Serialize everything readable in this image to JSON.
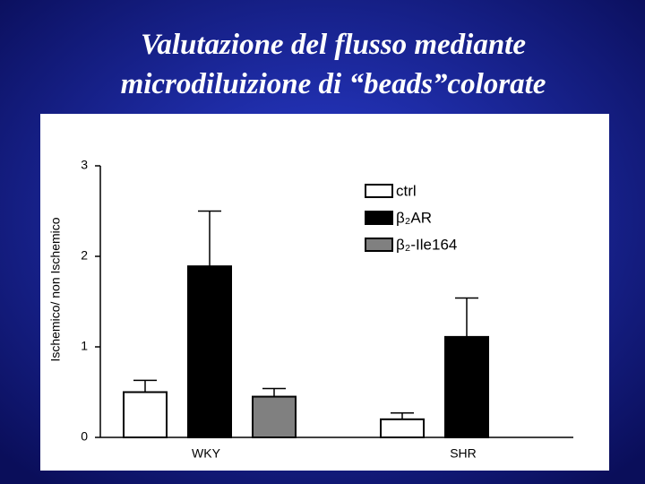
{
  "chart_data": {
    "type": "bar",
    "title": "Valutazione del flusso mediante",
    "subtitle": "microdiluizione di “beads”colorate",
    "y_label": "Ischemico/ non Ischemico",
    "categories": [
      "WKY",
      "SHR"
    ],
    "series": [
      {
        "name": "ctrl",
        "color": "#ffffff",
        "values": [
          0.5,
          0.2
        ],
        "errors": [
          0.13,
          0.07
        ]
      },
      {
        "name": "β₂AR",
        "color": "#000000",
        "values": [
          1.89,
          1.11
        ],
        "errors": [
          0.61,
          0.43
        ]
      },
      {
        "name": "β₂-Ile164",
        "color": "#808080",
        "values": [
          0.45,
          null
        ],
        "errors": [
          0.09,
          null
        ]
      }
    ],
    "ylim": [
      0,
      3
    ],
    "yticks": [
      0,
      1,
      2,
      3
    ],
    "error_bars": true
  }
}
